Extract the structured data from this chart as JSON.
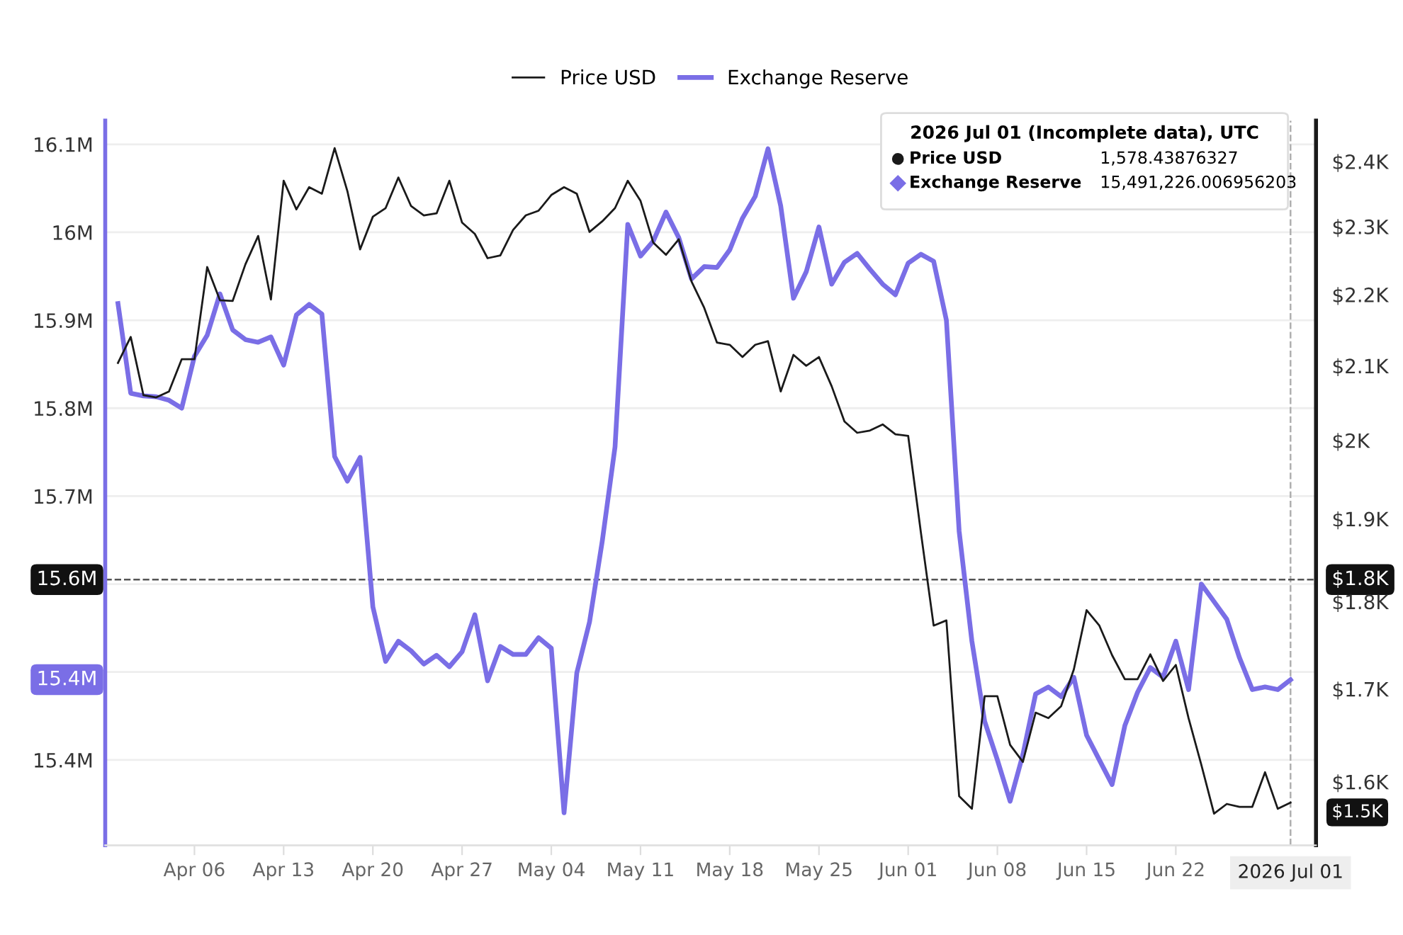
{
  "chart_data": {
    "type": "line",
    "x": [
      "2026-03-31",
      "2026-04-01",
      "2026-04-02",
      "2026-04-03",
      "2026-04-04",
      "2026-04-05",
      "2026-04-06",
      "2026-04-07",
      "2026-04-08",
      "2026-04-09",
      "2026-04-10",
      "2026-04-11",
      "2026-04-12",
      "2026-04-13",
      "2026-04-14",
      "2026-04-15",
      "2026-04-16",
      "2026-04-17",
      "2026-04-18",
      "2026-04-19",
      "2026-04-20",
      "2026-04-21",
      "2026-04-22",
      "2026-04-23",
      "2026-04-24",
      "2026-04-25",
      "2026-04-26",
      "2026-04-27",
      "2026-04-28",
      "2026-04-29",
      "2026-04-30",
      "2026-05-01",
      "2026-05-02",
      "2026-05-03",
      "2026-05-04",
      "2026-05-05",
      "2026-05-06",
      "2026-05-07",
      "2026-05-08",
      "2026-05-09",
      "2026-05-10",
      "2026-05-11",
      "2026-05-12",
      "2026-05-13",
      "2026-05-14",
      "2026-05-15",
      "2026-05-16",
      "2026-05-17",
      "2026-05-18",
      "2026-05-19",
      "2026-05-20",
      "2026-05-21",
      "2026-05-22",
      "2026-05-23",
      "2026-05-24",
      "2026-05-25",
      "2026-05-26",
      "2026-05-27",
      "2026-05-28",
      "2026-05-29",
      "2026-05-30",
      "2026-05-31",
      "2026-06-01",
      "2026-06-02",
      "2026-06-03",
      "2026-06-04",
      "2026-06-05",
      "2026-06-06",
      "2026-06-07",
      "2026-06-08",
      "2026-06-09",
      "2026-06-10",
      "2026-06-11",
      "2026-06-12",
      "2026-06-13",
      "2026-06-14",
      "2026-06-15",
      "2026-06-16",
      "2026-06-17",
      "2026-06-18",
      "2026-06-19",
      "2026-06-20",
      "2026-06-21",
      "2026-06-22",
      "2026-06-23",
      "2026-06-24",
      "2026-06-25",
      "2026-06-26",
      "2026-06-27",
      "2026-06-28",
      "2026-06-29",
      "2026-06-30",
      "2026-07-01"
    ],
    "series": [
      {
        "name": "Price USD",
        "color": "#1a1a1a",
        "axis": "y2",
        "values": [
          2104,
          2140,
          2060,
          2057,
          2065,
          2109,
          2109,
          2240,
          2192,
          2191,
          2244,
          2286,
          2193,
          2370,
          2326,
          2360,
          2350,
          2421,
          2354,
          2266,
          2315,
          2328,
          2375,
          2331,
          2317,
          2320,
          2370,
          2306,
          2289,
          2253,
          2257,
          2295,
          2317,
          2324,
          2348,
          2360,
          2350,
          2292,
          2308,
          2328,
          2370,
          2339,
          2276,
          2258,
          2281,
          2219,
          2181,
          2132,
          2129,
          2112,
          2129,
          2134,
          2065,
          2115,
          2100,
          2112,
          2072,
          2025,
          2010,
          2013,
          2021,
          2008,
          2006,
          1883,
          1772,
          1778,
          1585,
          1572,
          1692,
          1692,
          1639,
          1621,
          1674,
          1668,
          1681,
          1722,
          1790,
          1772,
          1738,
          1711,
          1711,
          1739,
          1709,
          1727,
          1668,
          1618,
          1567,
          1577,
          1574,
          1574,
          1610,
          1572,
          1578.43876327
        ]
      },
      {
        "name": "Exchange Reserve",
        "color": "#7a6ee6",
        "axis": "y",
        "values": [
          15.919,
          15.817,
          15.814,
          15.813,
          15.809,
          15.8,
          15.859,
          15.883,
          15.93,
          15.889,
          15.878,
          15.875,
          15.881,
          15.849,
          15.906,
          15.918,
          15.907,
          15.745,
          15.717,
          15.744,
          15.574,
          15.512,
          15.535,
          15.524,
          15.509,
          15.519,
          15.506,
          15.523,
          15.565,
          15.49,
          15.529,
          15.52,
          15.52,
          15.539,
          15.527,
          15.34,
          15.499,
          15.557,
          15.649,
          15.756,
          16.009,
          15.973,
          15.99,
          16.023,
          15.994,
          15.947,
          15.961,
          15.96,
          15.98,
          16.016,
          16.041,
          16.095,
          16.03,
          15.925,
          15.955,
          16.006,
          15.941,
          15.966,
          15.976,
          15.958,
          15.941,
          15.929,
          15.965,
          15.975,
          15.967,
          15.9,
          15.66,
          15.535,
          15.444,
          15.4,
          15.353,
          15.406,
          15.475,
          15.483,
          15.472,
          15.494,
          15.428,
          15.4,
          15.372,
          15.439,
          15.477,
          15.505,
          15.494,
          15.535,
          15.48,
          15.6,
          15.58,
          15.56,
          15.516,
          15.48,
          15.483,
          15.48,
          15.491226
        ]
      }
    ],
    "xlim": [
      "2026-03-30",
      "2026-07-03"
    ],
    "xticks": [
      {
        "value": "2026-04-06",
        "label": "Apr 06"
      },
      {
        "value": "2026-04-13",
        "label": "Apr 13"
      },
      {
        "value": "2026-04-20",
        "label": "Apr 20"
      },
      {
        "value": "2026-04-27",
        "label": "Apr 27"
      },
      {
        "value": "2026-05-04",
        "label": "May 04"
      },
      {
        "value": "2026-05-11",
        "label": "May 11"
      },
      {
        "value": "2026-05-18",
        "label": "May 18"
      },
      {
        "value": "2026-05-25",
        "label": "May 25"
      },
      {
        "value": "2026-06-01",
        "label": "Jun 01"
      },
      {
        "value": "2026-06-08",
        "label": "Jun 08"
      },
      {
        "value": "2026-06-15",
        "label": "Jun 15"
      },
      {
        "value": "2026-06-22",
        "label": "Jun 22"
      }
    ],
    "ylim": [
      15.303,
      16.127
    ],
    "yticks": [
      {
        "value": 15.4,
        "label": "15.4M"
      },
      {
        "value": 15.5,
        "label": null
      },
      {
        "value": 15.6,
        "label": null
      },
      {
        "value": 15.7,
        "label": "15.7M"
      },
      {
        "value": 15.8,
        "label": "15.8M"
      },
      {
        "value": 15.9,
        "label": "15.9M"
      },
      {
        "value": 16,
        "label": "16M"
      },
      {
        "value": 16.1,
        "label": "16.1M"
      }
    ],
    "log": "y2",
    "y2lim": [
      1535,
      2465
    ],
    "y2ticks": [
      {
        "value": 1600,
        "label": "$1.6K"
      },
      {
        "value": 1700,
        "label": "$1.7K"
      },
      {
        "value": 1800,
        "label": "$1.8K"
      },
      {
        "value": 1900,
        "label": "$1.9K"
      },
      {
        "value": 2000,
        "label": "$2K"
      },
      {
        "value": 2100,
        "label": "$2.1K"
      },
      {
        "value": 2200,
        "label": "$2.2K"
      },
      {
        "value": 2300,
        "label": "$2.3K"
      },
      {
        "value": 2400,
        "label": "$2.4K"
      }
    ],
    "ref_lines": [
      {
        "axis": "x",
        "value": "2026-07-01",
        "label": "2026 Jul 01",
        "color": "#b0b0b0",
        "line_style": "dashed"
      },
      {
        "axis": "y",
        "value": 15.605,
        "label": "15.6M",
        "color": "#555555",
        "line_style": "dashed"
      }
    ],
    "annotations": [
      "2026 Jul 01 (Incomplete data), UTC",
      "Price USD",
      "1,578.43876327",
      "Exchange Reserve",
      "15,491,226.006956203",
      "15.4M",
      "$1.5K",
      "$1.8K"
    ],
    "grid": "y",
    "legend": "top",
    "marker": "none",
    "line_style": "solid"
  }
}
